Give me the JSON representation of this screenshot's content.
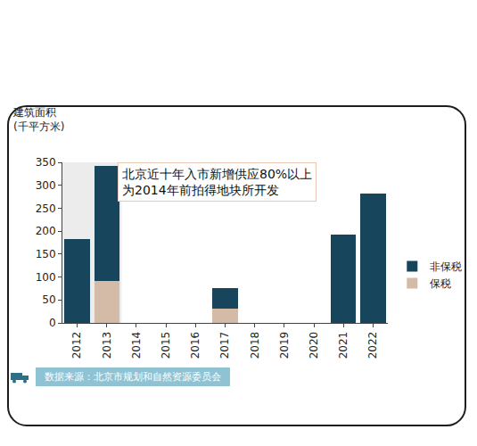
{
  "chart_data": {
    "type": "bar",
    "stacked": true,
    "y_label": "建筑面积\n(千平方米)",
    "annotation": "北京近十年入市新增供应80%以上\n为2014年前拍得地块所开发",
    "source": "数据来源：北京市规划和自然资源委员会",
    "categories": [
      "2012",
      "2013",
      "2014",
      "2015",
      "2016",
      "2017",
      "2018",
      "2019",
      "2020",
      "2021",
      "2022"
    ],
    "series": [
      {
        "name": "保税",
        "color": "#d3bba8",
        "values": [
          0,
          92,
          0,
          0,
          0,
          32,
          0,
          0,
          0,
          0,
          0
        ]
      },
      {
        "name": "非保税",
        "color": "#17465c",
        "values": [
          183,
          251,
          0,
          0,
          0,
          44,
          0,
          0,
          0,
          193,
          281
        ]
      }
    ],
    "ylim": [
      0,
      350
    ],
    "yticks": [
      0,
      50,
      100,
      150,
      200,
      250,
      300,
      350
    ],
    "grid": false,
    "legend": "right"
  }
}
